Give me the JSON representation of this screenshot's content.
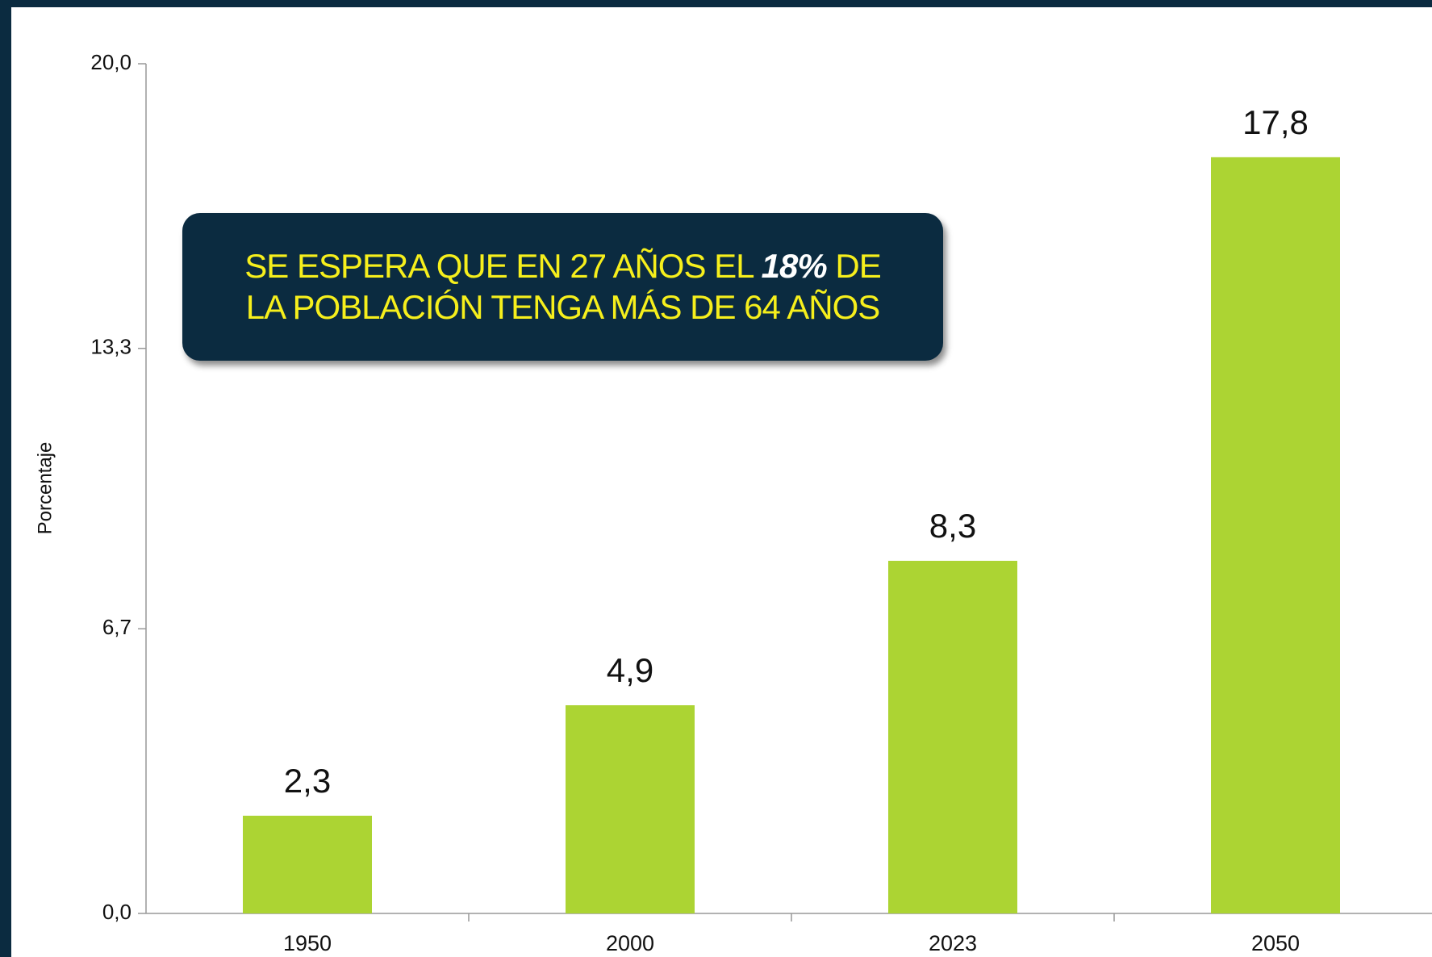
{
  "chart_data": {
    "type": "bar",
    "y_axis_label": "Porcentaje",
    "categories": [
      "1950",
      "2000",
      "2023",
      "2050"
    ],
    "values": [
      2.3,
      4.9,
      8.3,
      17.8
    ],
    "value_labels": [
      "2,3",
      "4,9",
      "8,3",
      "17,8"
    ],
    "color": "#acd433",
    "ylim": [
      0,
      20
    ],
    "yticks": [
      {
        "value": 0,
        "label": "0,0"
      },
      {
        "value": 6.7,
        "label": "6,7"
      },
      {
        "value": 13.3,
        "label": "13,3"
      },
      {
        "value": 20,
        "label": "20,0"
      }
    ],
    "annotation": {
      "line1_before": "SE ESPERA QUE EN 27 AÑOS EL",
      "emphasis": "18%",
      "line1_after": "DE",
      "line2": "LA POBLACIÓN TENGA MÁS DE 64 AÑOS"
    }
  }
}
